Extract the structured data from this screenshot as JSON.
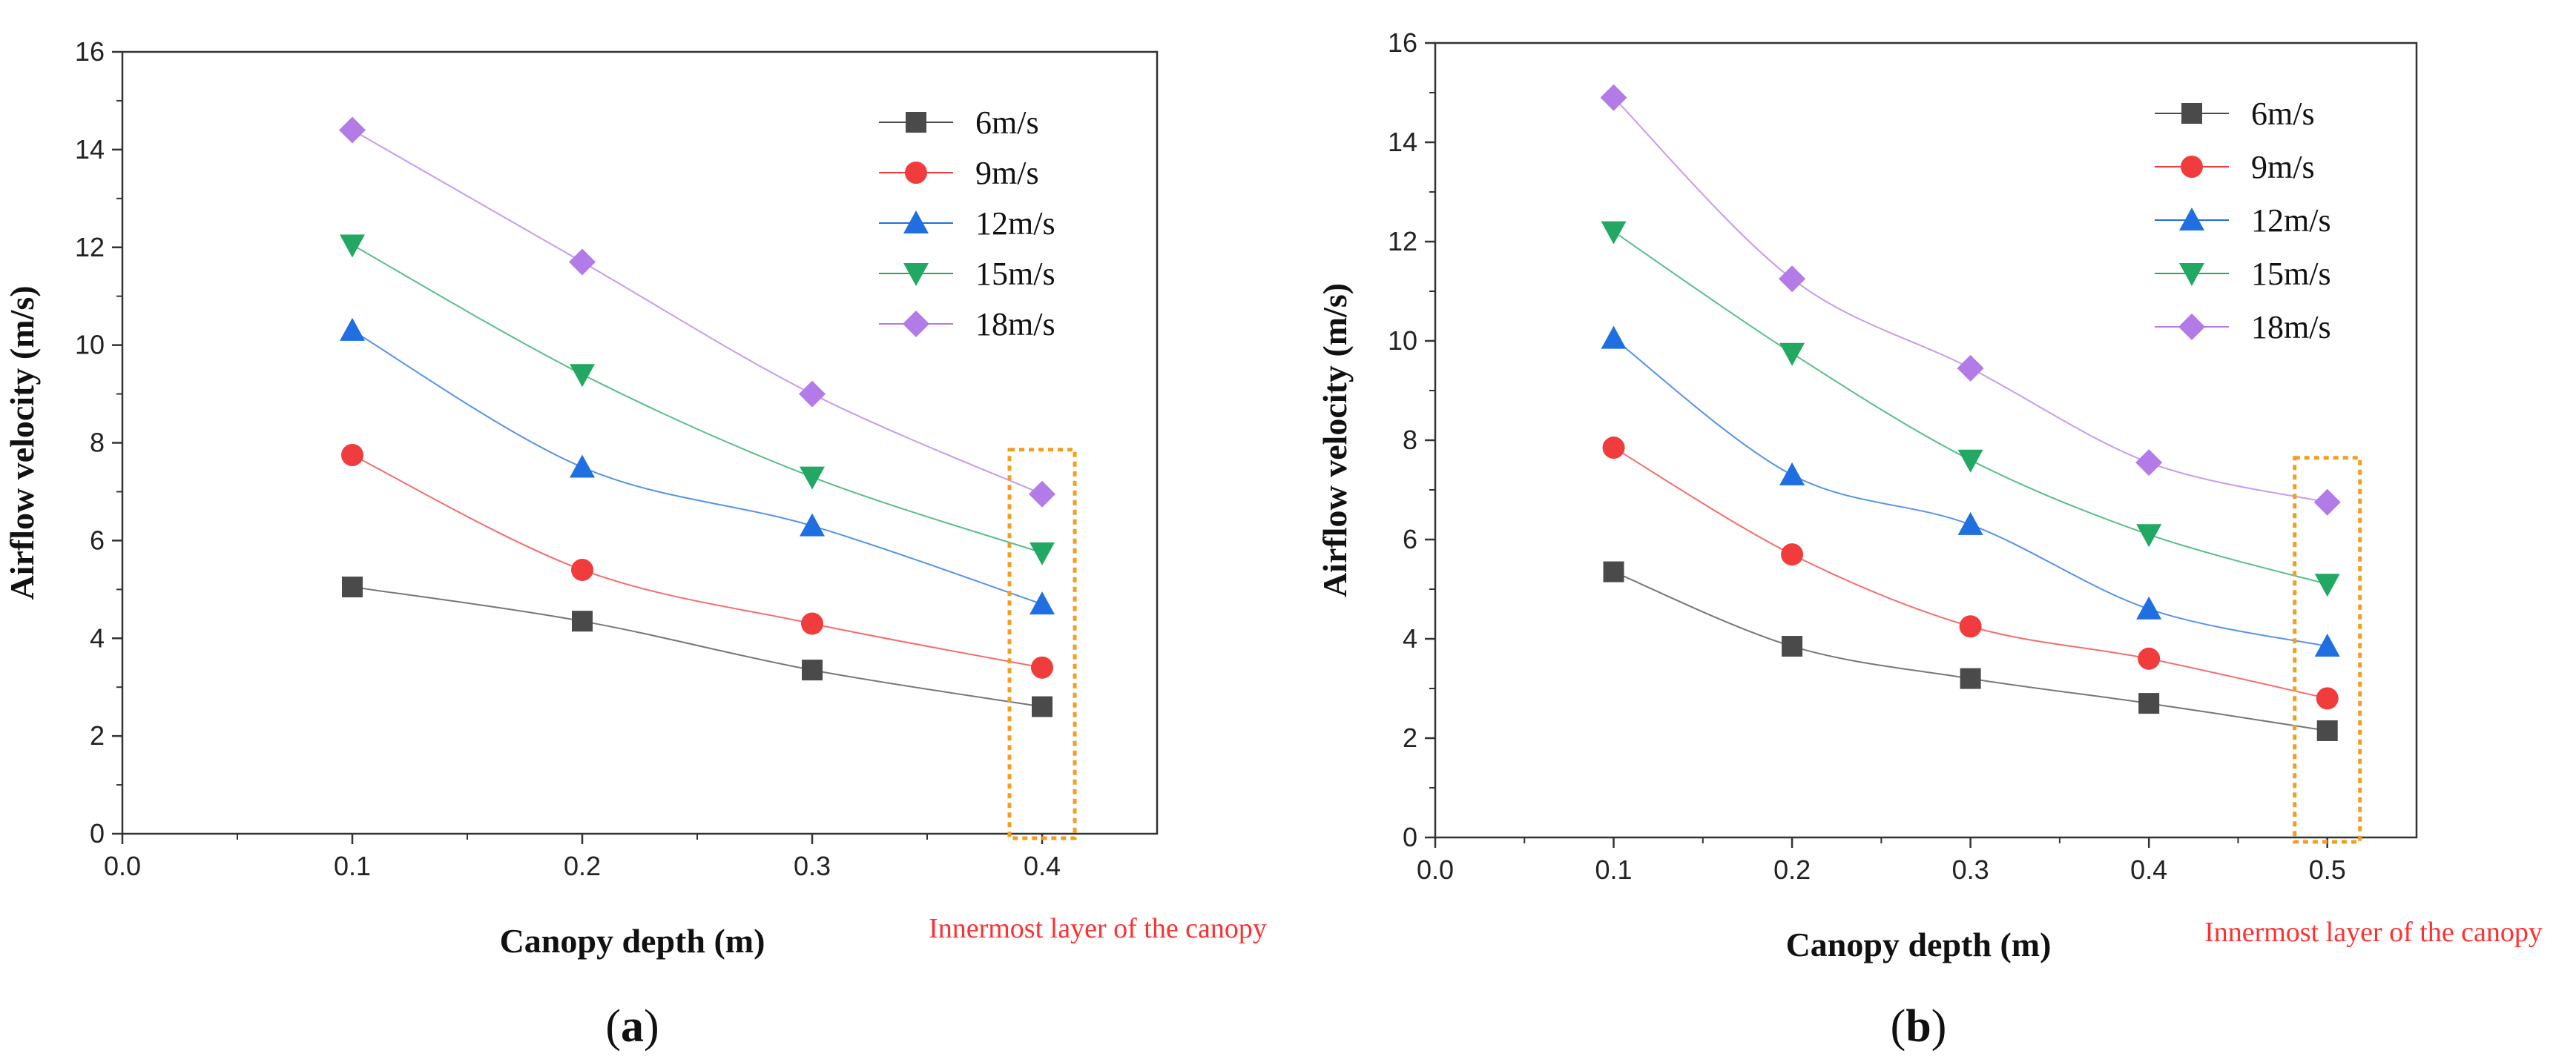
{
  "chart_data": [
    {
      "panel_label": "a",
      "type": "line",
      "xlabel": "Canopy depth (m)",
      "ylabel": "Airflow velocity (m/s)",
      "xlim": [
        0,
        0.45
      ],
      "ylim": [
        0,
        16
      ],
      "x_ticks": [
        "0.0",
        "0.1",
        "0.2",
        "0.3",
        "0.4"
      ],
      "y_ticks": [
        "0",
        "2",
        "4",
        "6",
        "8",
        "10",
        "12",
        "14",
        "16"
      ],
      "x": [
        0.1,
        0.2,
        0.3,
        0.4
      ],
      "series": [
        {
          "name": "6m/s",
          "values": [
            5.05,
            4.35,
            3.35,
            2.6
          ],
          "color": "#4a4a4a",
          "marker": "square"
        },
        {
          "name": "9m/s",
          "values": [
            7.75,
            5.4,
            4.3,
            3.4
          ],
          "color": "#f03c3c",
          "marker": "circle"
        },
        {
          "name": "12m/s",
          "values": [
            10.3,
            7.5,
            6.3,
            4.7
          ],
          "color": "#1f6fe0",
          "marker": "triangle-up"
        },
        {
          "name": "15m/s",
          "values": [
            12.05,
            9.4,
            7.3,
            5.75
          ],
          "color": "#23a863",
          "marker": "triangle-down"
        },
        {
          "name": "18m/s",
          "values": [
            14.4,
            11.7,
            9.0,
            6.95
          ],
          "color": "#b27be8",
          "marker": "diamond"
        }
      ],
      "highlight_x": 0.4,
      "annotation": "Innermost layer of the canopy",
      "legend_position": "top-right",
      "grid": false
    },
    {
      "panel_label": "b",
      "type": "line",
      "xlabel": "Canopy depth (m)",
      "ylabel": "Airflow velocity (m/s)",
      "xlim": [
        0,
        0.55
      ],
      "ylim": [
        0,
        16
      ],
      "x_ticks": [
        "0.0",
        "0.1",
        "0.2",
        "0.3",
        "0.4",
        "0.5"
      ],
      "y_ticks": [
        "0",
        "2",
        "4",
        "6",
        "8",
        "10",
        "12",
        "14",
        "16"
      ],
      "x": [
        0.1,
        0.2,
        0.3,
        0.4,
        0.5
      ],
      "series": [
        {
          "name": "6m/s",
          "values": [
            5.35,
            3.85,
            3.2,
            2.7,
            2.15
          ],
          "color": "#4a4a4a",
          "marker": "square"
        },
        {
          "name": "9m/s",
          "values": [
            7.85,
            5.7,
            4.25,
            3.6,
            2.8
          ],
          "color": "#f03c3c",
          "marker": "circle"
        },
        {
          "name": "12m/s",
          "values": [
            10.05,
            7.3,
            6.3,
            4.6,
            3.85
          ],
          "color": "#1f6fe0",
          "marker": "triangle-up"
        },
        {
          "name": "15m/s",
          "values": [
            12.2,
            9.75,
            7.6,
            6.1,
            5.1
          ],
          "color": "#23a863",
          "marker": "triangle-down"
        },
        {
          "name": "18m/s",
          "values": [
            14.9,
            11.25,
            9.45,
            7.55,
            6.75
          ],
          "color": "#b27be8",
          "marker": "diamond"
        }
      ],
      "highlight_x": 0.5,
      "annotation": "Innermost layer of the canopy",
      "legend_position": "top-right",
      "grid": false
    }
  ]
}
